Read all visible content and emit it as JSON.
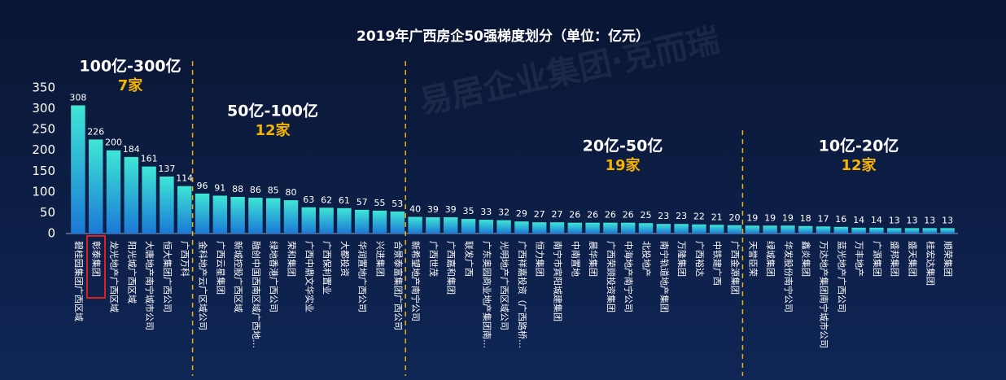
{
  "chart_data": {
    "type": "bar",
    "title": "2019年广西房企50强梯度划分（单位：亿元）",
    "watermark": "易居企业集团·克而瑞",
    "categories": [
      "碧桂园集团广西区域",
      "彰泰集团",
      "龙光地产广西区域",
      "阳光城广西区域",
      "大唐地产南宁城市公司",
      "恒大集团广西公司",
      "广西万科",
      "金科地产云广区域公司",
      "广西云星集团",
      "新城控股广西区域",
      "融创中国西南区域广西地…",
      "绿地香港广西公司",
      "荣和集团",
      "广西中鼎文华实业",
      "广西保利置业",
      "大都投资",
      "华润置地广西公司",
      "兴进集团",
      "合景泰富集团广西公司",
      "新希望地产南宁公司",
      "广西世茂",
      "广西嘉和集团",
      "联发广西",
      "广东奥园商业地产集团南…",
      "光明地产广西区域公司",
      "广西祥嘉投资（广西路桥…",
      "恒力集团",
      "南宁市宾阳城建集团",
      "中南置地",
      "晨华集团",
      "广西荣顾投资集团",
      "中海地产南宁公司",
      "北投地产",
      "南宁轨道地产集团",
      "万隆集团",
      "广西裕达",
      "中铁建广西",
      "广西金源集团",
      "天誉臣荣",
      "绿城集团",
      "华发股份南宁公司",
      "鑫炎集团",
      "万达地产集团南宁城市公司",
      "蓝光地产广西公司",
      "万丰地产",
      "广源集团",
      "盛邦集团",
      "盛天集团",
      "桂宏达集团",
      "顺荣集团"
    ],
    "values": [
      308,
      226,
      200,
      184,
      161,
      137,
      114,
      96,
      91,
      88,
      86,
      85,
      80,
      63,
      62,
      61,
      57,
      55,
      53,
      40,
      39,
      39,
      35,
      33,
      32,
      29,
      27,
      27,
      26,
      26,
      26,
      26,
      25,
      23,
      23,
      22,
      21,
      20,
      19,
      19,
      19,
      18,
      17,
      16,
      14,
      14,
      13,
      13,
      13,
      13
    ],
    "ylim": [
      0,
      350
    ],
    "yticks": [
      0,
      50,
      100,
      150,
      200,
      250,
      300,
      350
    ],
    "grid": false,
    "colors": {
      "top": "#3fe6d6",
      "bottom": "#1b78d6"
    },
    "groups": [
      {
        "range": "100亿-300亿",
        "count": "7家"
      },
      {
        "range": "50亿-100亿",
        "count": "12家"
      },
      {
        "range": "20亿-50亿",
        "count": "19家"
      },
      {
        "range": "10亿-20亿",
        "count": "12家"
      }
    ]
  }
}
